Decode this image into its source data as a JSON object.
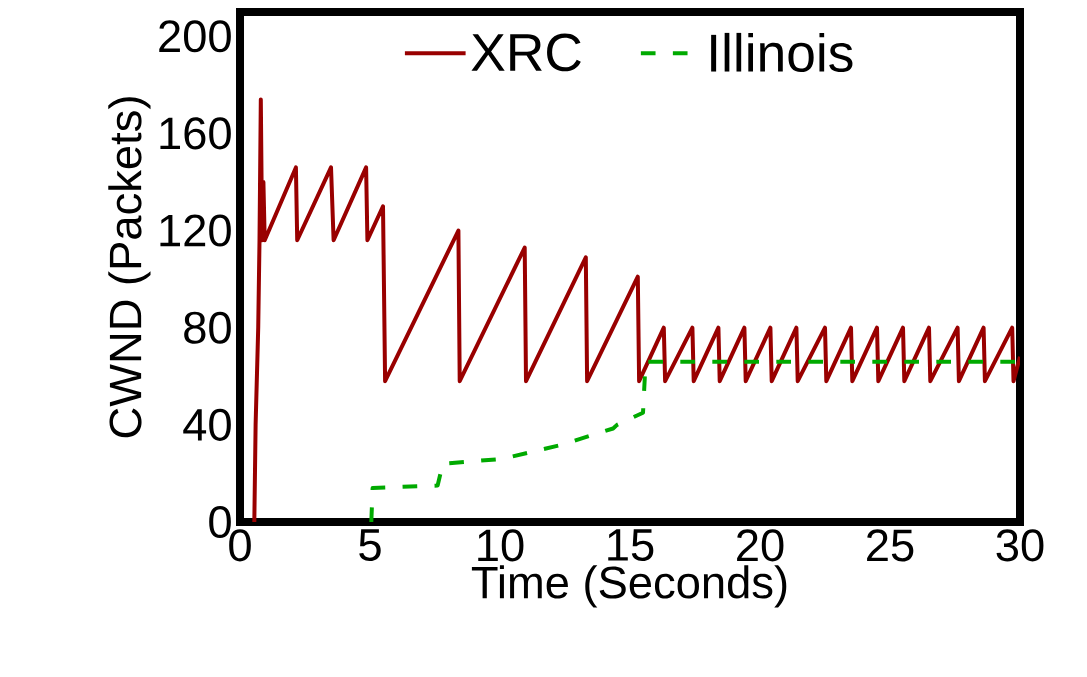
{
  "chart_data": {
    "type": "line",
    "xlabel": "Time (Seconds)",
    "ylabel": "CWND (Packets)",
    "xlim": [
      0,
      30
    ],
    "ylim": [
      0,
      210
    ],
    "xticks": [
      0,
      5,
      10,
      15,
      20,
      25,
      30
    ],
    "yticks": [
      0,
      40,
      80,
      120,
      160,
      200
    ],
    "legend": "top",
    "series": [
      {
        "name": "XRC",
        "color": "#990000",
        "line_style": "solid",
        "x": [
          0.55,
          0.6,
          0.7,
          0.75,
          0.8,
          0.85,
          0.9,
          0.95,
          2.15,
          2.2,
          3.5,
          3.6,
          4.85,
          4.9,
          5.5,
          5.58,
          8.4,
          8.45,
          10.95,
          11.0,
          13.3,
          13.35,
          15.3,
          15.35,
          16.3,
          16.35,
          17.4,
          17.45,
          18.4,
          18.45,
          19.4,
          19.45,
          20.4,
          20.45,
          21.4,
          21.45,
          22.5,
          22.55,
          23.5,
          23.55,
          24.5,
          24.55,
          25.5,
          25.55,
          26.5,
          26.55,
          27.6,
          27.65,
          28.6,
          28.65,
          29.7,
          29.75,
          30
        ],
        "values": [
          0,
          40,
          80,
          116,
          174,
          116,
          140,
          116,
          146,
          116,
          146,
          116,
          146,
          116,
          130,
          58,
          120,
          58,
          113,
          58,
          109,
          58,
          101,
          58,
          80,
          58,
          80,
          58,
          80,
          58,
          80,
          58,
          80,
          58,
          80,
          58,
          80,
          58,
          80,
          58,
          80,
          58,
          80,
          58,
          80,
          58,
          80,
          58,
          80,
          58,
          80,
          58,
          68
        ]
      },
      {
        "name": "Illinois",
        "color": "#00aa00",
        "line_style": "dashed",
        "x": [
          5.05,
          5.1,
          7.6,
          7.8,
          10.1,
          12.3,
          14.35,
          14.5,
          15.5,
          15.6,
          30
        ],
        "values": [
          0,
          14,
          15,
          24,
          26,
          31.6,
          38.5,
          40,
          45,
          66,
          66
        ]
      }
    ]
  }
}
